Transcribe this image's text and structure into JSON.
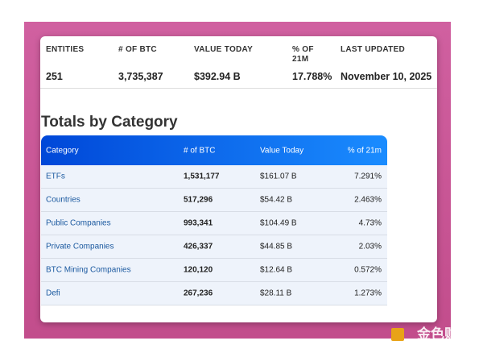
{
  "summary": {
    "headers": [
      "ENTITIES",
      "# OF BTC",
      "VALUE TODAY",
      "% OF 21M",
      "LAST UPDATED"
    ],
    "values": [
      "251",
      "3,735,387",
      "$392.94 B",
      "17.788%",
      "November 10, 2025"
    ]
  },
  "heading": "Totals by Category",
  "table": {
    "headers": [
      "Category",
      "# of BTC",
      "Value Today",
      "% of 21m"
    ],
    "rows": [
      [
        "ETFs",
        "1,531,177",
        "$161.07 B",
        "7.291%"
      ],
      [
        "Countries",
        "517,296",
        "$54.42 B",
        "2.463%"
      ],
      [
        "Public Companies",
        "993,341",
        "$104.49 B",
        "4.73%"
      ],
      [
        "Private Companies",
        "426,337",
        "$44.85 B",
        "2.03%"
      ],
      [
        "BTC Mining Companies",
        "120,120",
        "$12.64 B",
        "0.572%"
      ],
      [
        "Defi",
        "267,236",
        "$28.11 B",
        "1.273%"
      ]
    ]
  },
  "watermark": "金色财经"
}
